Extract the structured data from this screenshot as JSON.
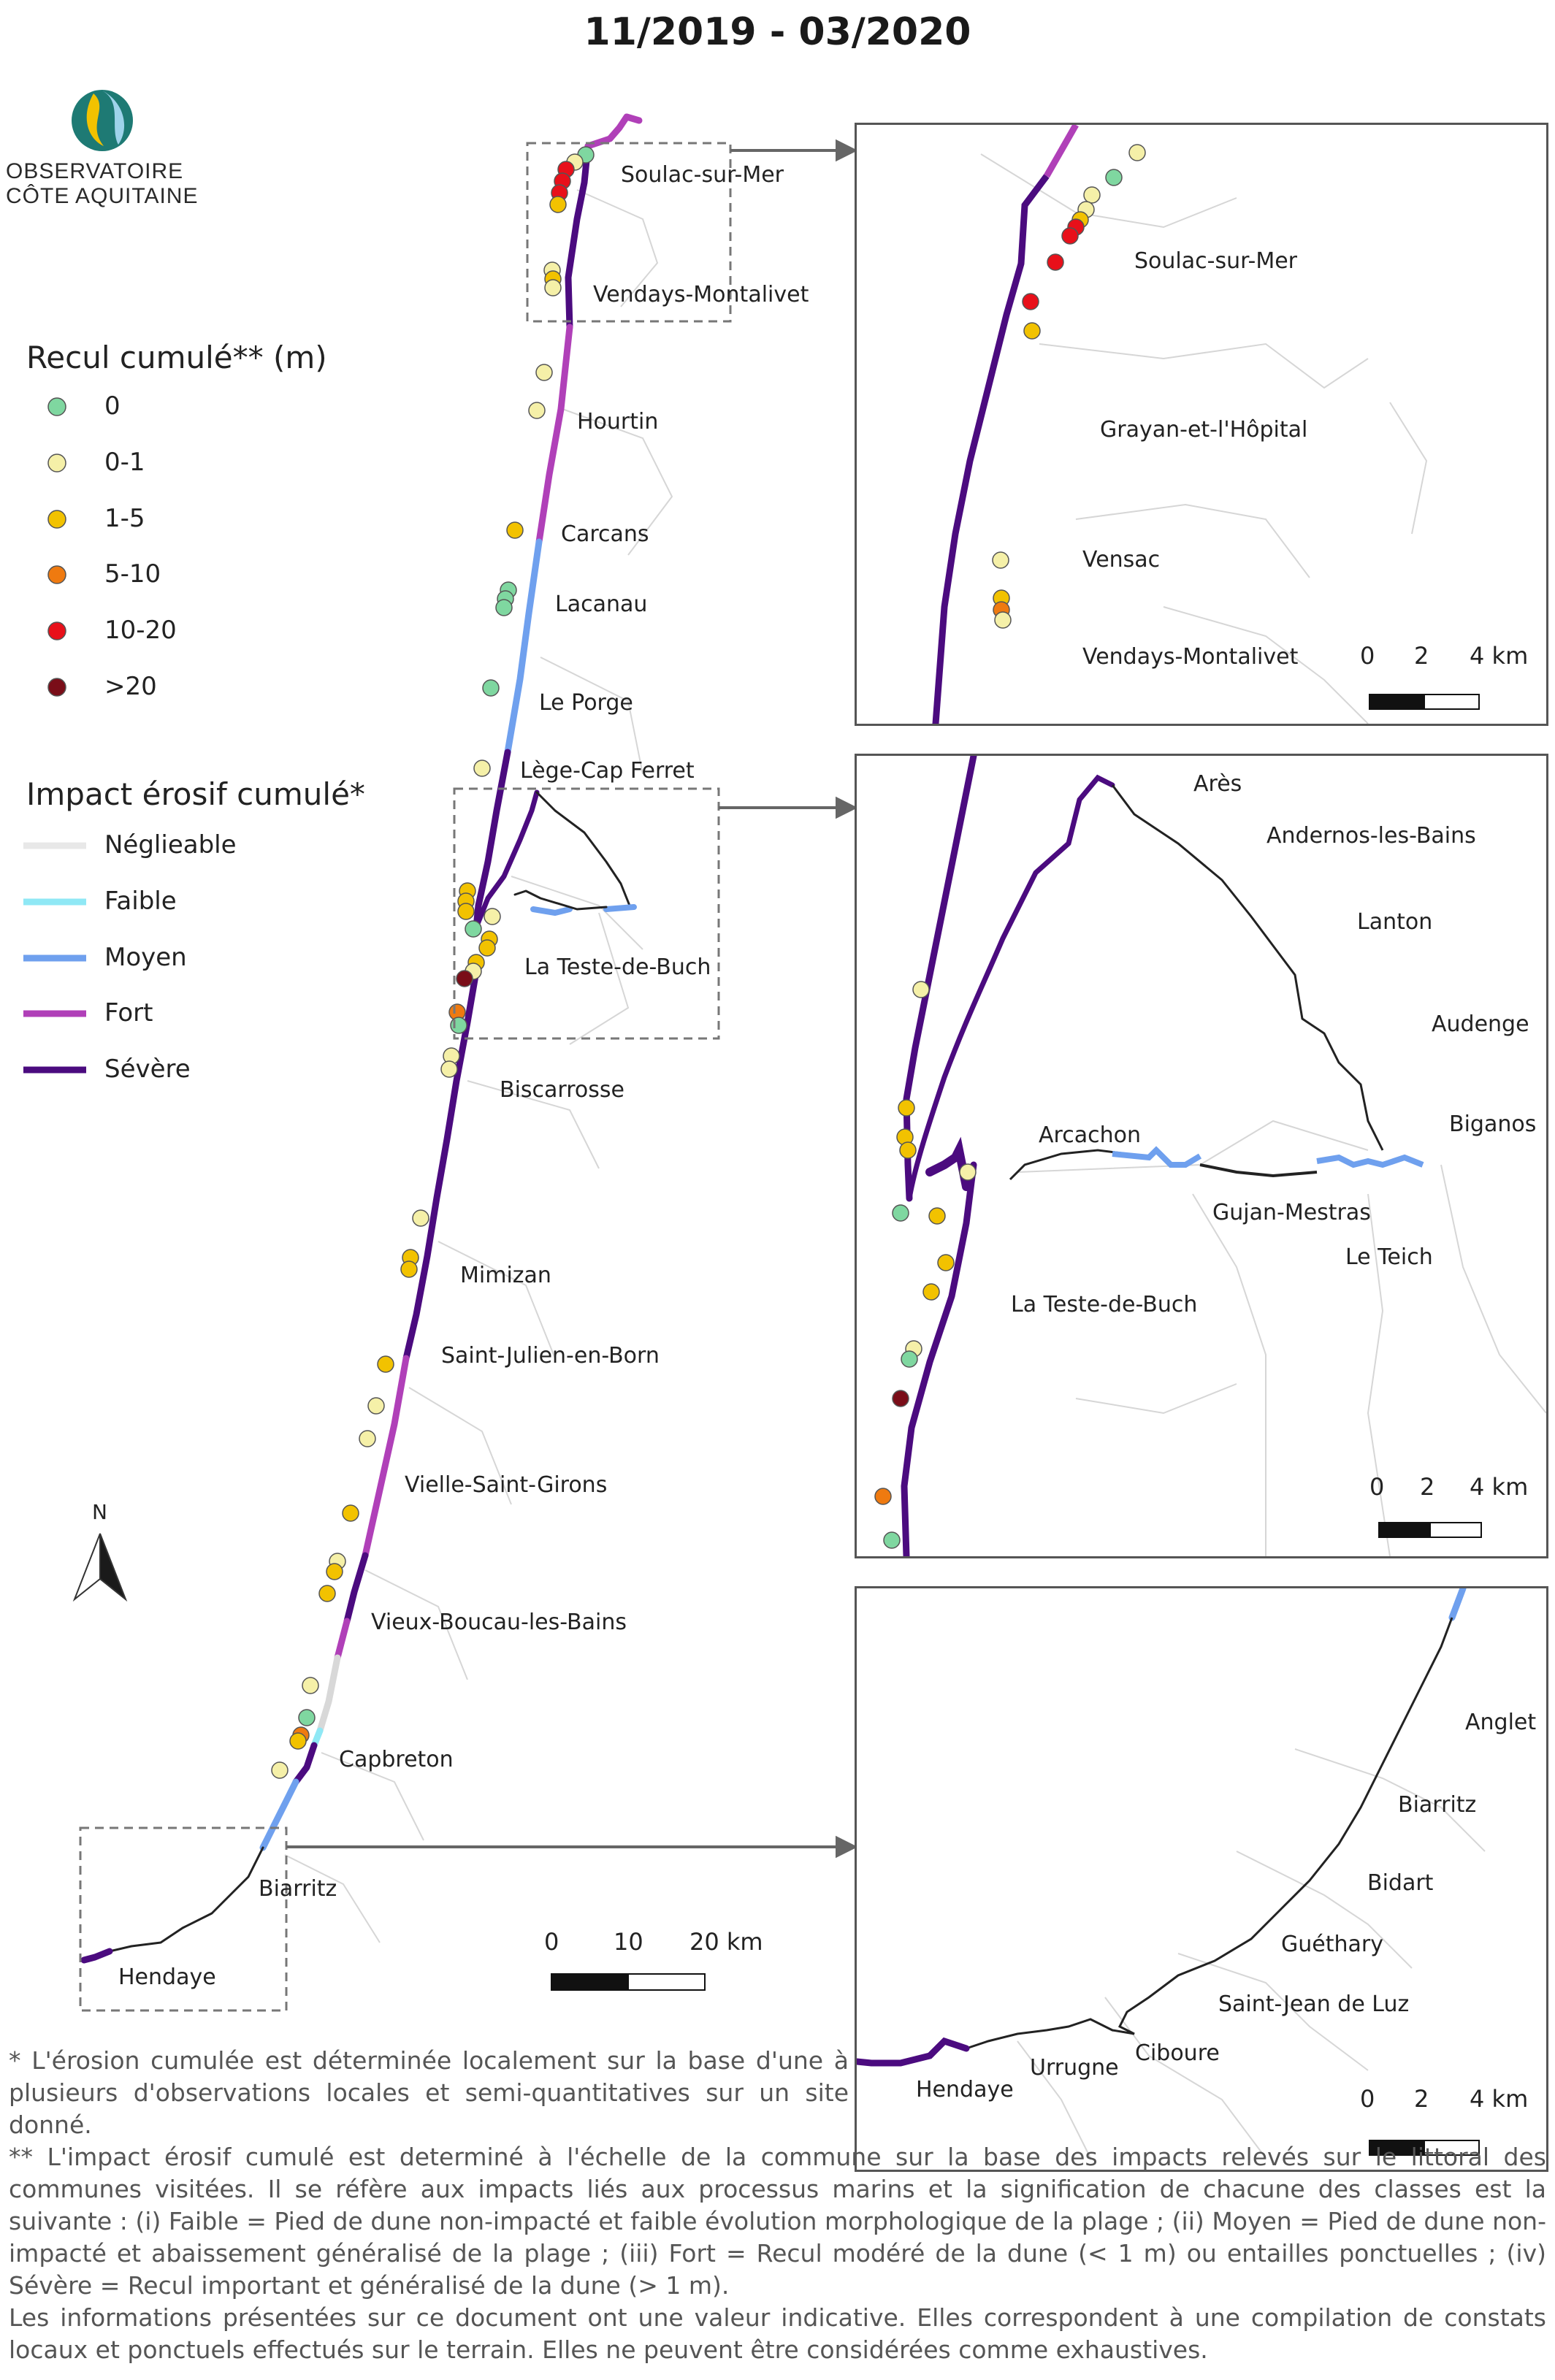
{
  "title": "11/2019 - 03/2020",
  "logo": {
    "line1": "OBSERVATOIRE",
    "line2": "CÔTE AQUITAINE",
    "icon": "observatoire-logo-icon"
  },
  "legend_recul": {
    "title": "Recul cumulé** (m)",
    "items": [
      {
        "label": "0",
        "color": "#7fd7a0"
      },
      {
        "label": "0-1",
        "color": "#f5f0a8"
      },
      {
        "label": "1-5",
        "color": "#f2c200"
      },
      {
        "label": "5-10",
        "color": "#ef7a10"
      },
      {
        "label": "10-20",
        "color": "#e8101a"
      },
      {
        "label": ">20",
        "color": "#7a0d18"
      }
    ]
  },
  "legend_impact": {
    "title": "Impact érosif cumulé*",
    "items": [
      {
        "label": "Néglieable",
        "color": "#e8e8e8"
      },
      {
        "label": "Faible",
        "color": "#8fe8f5"
      },
      {
        "label": "Moyen",
        "color": "#6fa0ee"
      },
      {
        "label": "Fort",
        "color": "#b040b8"
      },
      {
        "label": "Sévère",
        "color": "#4b0b7f"
      }
    ]
  },
  "main_map": {
    "places": [
      "Soulac-sur-Mer",
      "Vendays-Montalivet",
      "Hourtin",
      "Carcans",
      "Lacanau",
      "Le Porge",
      "Lège-Cap Ferret",
      "La Teste-de-Buch",
      "Biscarrosse",
      "Mimizan",
      "Saint-Julien-en-Born",
      "Vielle-Saint-Girons",
      "Vieux-Boucau-les-Bains",
      "Capbreton",
      "Biarritz",
      "Hendaye"
    ],
    "scale": {
      "labels": [
        "0",
        "10",
        "20 km"
      ]
    },
    "north": "N"
  },
  "inset_north": {
    "places": [
      "Soulac-sur-Mer",
      "Grayan-et-l'Hôpital",
      "Vensac",
      "Vendays-Montalivet"
    ],
    "scale": {
      "labels": [
        "0",
        "2",
        "4 km"
      ]
    }
  },
  "inset_arcachon": {
    "places": [
      "Arès",
      "Andernos-les-Bains",
      "Lanton",
      "Audenge",
      "Biganos",
      "Arcachon",
      "Gujan-Mestras",
      "Le Teich",
      "La Teste-de-Buch"
    ],
    "scale": {
      "labels": [
        "0",
        "2",
        "4 km"
      ]
    }
  },
  "inset_south": {
    "places": [
      "Anglet",
      "Biarritz",
      "Bidart",
      "Guéthary",
      "Saint-Jean de Luz",
      "Ciboure",
      "Urrugne",
      "Hendaye"
    ],
    "scale": {
      "labels": [
        "0",
        "2",
        "4 km"
      ]
    }
  },
  "notes": {
    "note1": "* L'érosion cumulée est déterminée localement sur la base d'une à plusieurs d'observations locales et semi-quantitatives sur un site donné.",
    "note2": "** L'impact érosif cumulé est determiné à l'échelle de la commune sur la base des impacts relevés sur le littoral des communes visitées. Il se réfère aux impacts liés aux processus marins et la signification de chacune des classes est la suivante : (i) Faible = Pied de dune non-impacté et faible évolution morphologique de la plage ; (ii) Moyen = Pied de dune non-impacté et abaissement généralisé de la plage ; (iii) Fort = Recul modéré de la dune (< 1 m) ou entailles ponctuelles ; (iv) Sévère = Recul important et généralisé de la dune (> 1 m).",
    "note3": "Les informations présentées sur ce document ont une valeur indicative. Elles correspondent à une compilation de constats locaux et ponctuels effectués sur le terrain. Elles ne peuvent être considérées comme exhaustives."
  }
}
